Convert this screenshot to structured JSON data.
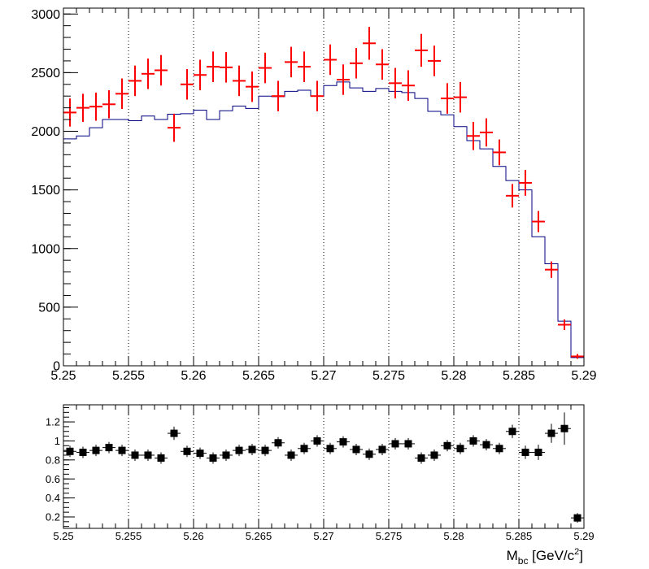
{
  "chart_data": [
    {
      "type": "histogram",
      "title": "",
      "xlabel": "",
      "ylabel": "",
      "xlim": [
        5.25,
        5.29
      ],
      "ylim": [
        0,
        3050
      ],
      "bin_width": 0.001,
      "xticks": [
        "5.25",
        "5.255",
        "5.26",
        "5.265",
        "5.27",
        "5.275",
        "5.28",
        "5.285",
        "5.29"
      ],
      "xtick_values": [
        5.25,
        5.255,
        5.26,
        5.265,
        5.27,
        5.275,
        5.28,
        5.285,
        5.29
      ],
      "yticks": [
        "0",
        "500",
        "1000",
        "1500",
        "2000",
        "2500",
        "3000"
      ],
      "ytick_values": [
        0,
        500,
        1000,
        1500,
        2000,
        2500,
        3000
      ],
      "grid": "vertical dotted",
      "series": [
        {
          "kind": "step",
          "color": "#000080",
          "bin_centers": [
            5.2505,
            5.2515,
            5.2525,
            5.2535,
            5.2545,
            5.2555,
            5.2565,
            5.2575,
            5.2585,
            5.2595,
            5.2605,
            5.2615,
            5.2625,
            5.2635,
            5.2645,
            5.2655,
            5.2665,
            5.2675,
            5.2685,
            5.2695,
            5.2705,
            5.2715,
            5.2725,
            5.2735,
            5.2745,
            5.2755,
            5.2765,
            5.2775,
            5.2785,
            5.2795,
            5.2805,
            5.2815,
            5.2825,
            5.2835,
            5.2845,
            5.2855,
            5.2865,
            5.2875,
            5.2885,
            5.2895
          ],
          "values": [
            1935,
            1960,
            2030,
            2100,
            2100,
            2090,
            2130,
            2100,
            2145,
            2150,
            2180,
            2100,
            2175,
            2215,
            2195,
            2300,
            2295,
            2340,
            2350,
            2300,
            2390,
            2420,
            2370,
            2340,
            2365,
            2340,
            2330,
            2280,
            2170,
            2140,
            2040,
            1920,
            1850,
            1700,
            1580,
            1500,
            1100,
            870,
            380,
            70
          ]
        },
        {
          "kind": "errorbar",
          "color": "#ff0000",
          "bin_centers": [
            5.2505,
            5.2515,
            5.2525,
            5.2535,
            5.2545,
            5.2555,
            5.2565,
            5.2575,
            5.2585,
            5.2595,
            5.2605,
            5.2615,
            5.2625,
            5.2635,
            5.2645,
            5.2655,
            5.2665,
            5.2675,
            5.2685,
            5.2695,
            5.2705,
            5.2715,
            5.2725,
            5.2735,
            5.2745,
            5.2755,
            5.2765,
            5.2775,
            5.2785,
            5.2795,
            5.2805,
            5.2815,
            5.2825,
            5.2835,
            5.2845,
            5.2855,
            5.2865,
            5.2875,
            5.2885,
            5.2895
          ],
          "values": [
            2160,
            2200,
            2210,
            2230,
            2320,
            2430,
            2490,
            2520,
            2030,
            2400,
            2480,
            2550,
            2545,
            2430,
            2380,
            2540,
            2300,
            2590,
            2550,
            2300,
            2610,
            2440,
            2580,
            2750,
            2570,
            2410,
            2390,
            2690,
            2600,
            2280,
            2290,
            1960,
            1990,
            1820,
            1450,
            1560,
            1230,
            820,
            350,
            80
          ],
          "errors": [
            120,
            120,
            120,
            120,
            130,
            130,
            130,
            130,
            120,
            130,
            130,
            130,
            130,
            130,
            130,
            130,
            130,
            130,
            130,
            130,
            130,
            130,
            130,
            140,
            130,
            130,
            130,
            140,
            130,
            130,
            130,
            120,
            120,
            110,
            100,
            110,
            90,
            70,
            45,
            20
          ]
        }
      ]
    },
    {
      "type": "scatter",
      "title": "",
      "xlabel": "M_{bc} [GeV/c^{2}]",
      "ylabel": "",
      "xlim": [
        5.25,
        5.29
      ],
      "ylim": [
        0.08,
        1.38
      ],
      "xticks": [
        "5.25",
        "5.255",
        "5.26",
        "5.265",
        "5.27",
        "5.275",
        "5.28",
        "5.285",
        "5.29"
      ],
      "xtick_values": [
        5.25,
        5.255,
        5.26,
        5.265,
        5.27,
        5.275,
        5.28,
        5.285,
        5.29
      ],
      "yticks": [
        "0.2",
        "0.4",
        "0.6",
        "0.8",
        "1",
        "1.2"
      ],
      "ytick_values": [
        0.2,
        0.4,
        0.6,
        0.8,
        1.0,
        1.2
      ],
      "grid": "vertical dotted",
      "series": [
        {
          "kind": "points",
          "color": "#000000",
          "x": [
            5.2505,
            5.2515,
            5.2525,
            5.2535,
            5.2545,
            5.2555,
            5.2565,
            5.2575,
            5.2585,
            5.2595,
            5.2605,
            5.2615,
            5.2625,
            5.2635,
            5.2645,
            5.2655,
            5.2665,
            5.2675,
            5.2685,
            5.2695,
            5.2705,
            5.2715,
            5.2725,
            5.2735,
            5.2745,
            5.2755,
            5.2765,
            5.2775,
            5.2785,
            5.2795,
            5.2805,
            5.2815,
            5.2825,
            5.2835,
            5.2845,
            5.2855,
            5.2865,
            5.2875,
            5.2885,
            5.2895
          ],
          "y": [
            0.89,
            0.88,
            0.9,
            0.93,
            0.9,
            0.85,
            0.85,
            0.82,
            1.08,
            0.89,
            0.87,
            0.82,
            0.85,
            0.9,
            0.91,
            0.9,
            0.98,
            0.85,
            0.92,
            1.0,
            0.92,
            0.99,
            0.91,
            0.86,
            0.91,
            0.97,
            0.97,
            0.82,
            0.85,
            0.95,
            0.92,
            1.0,
            0.96,
            0.92,
            1.1,
            0.88,
            0.88,
            1.08,
            1.13,
            0.19
          ],
          "errors": [
            0.06,
            0.06,
            0.06,
            0.06,
            0.06,
            0.06,
            0.06,
            0.06,
            0.07,
            0.06,
            0.06,
            0.06,
            0.06,
            0.06,
            0.06,
            0.06,
            0.06,
            0.06,
            0.06,
            0.06,
            0.06,
            0.06,
            0.06,
            0.06,
            0.06,
            0.06,
            0.06,
            0.06,
            0.06,
            0.06,
            0.06,
            0.06,
            0.06,
            0.06,
            0.07,
            0.07,
            0.08,
            0.1,
            0.17,
            0.05
          ]
        }
      ]
    }
  ]
}
